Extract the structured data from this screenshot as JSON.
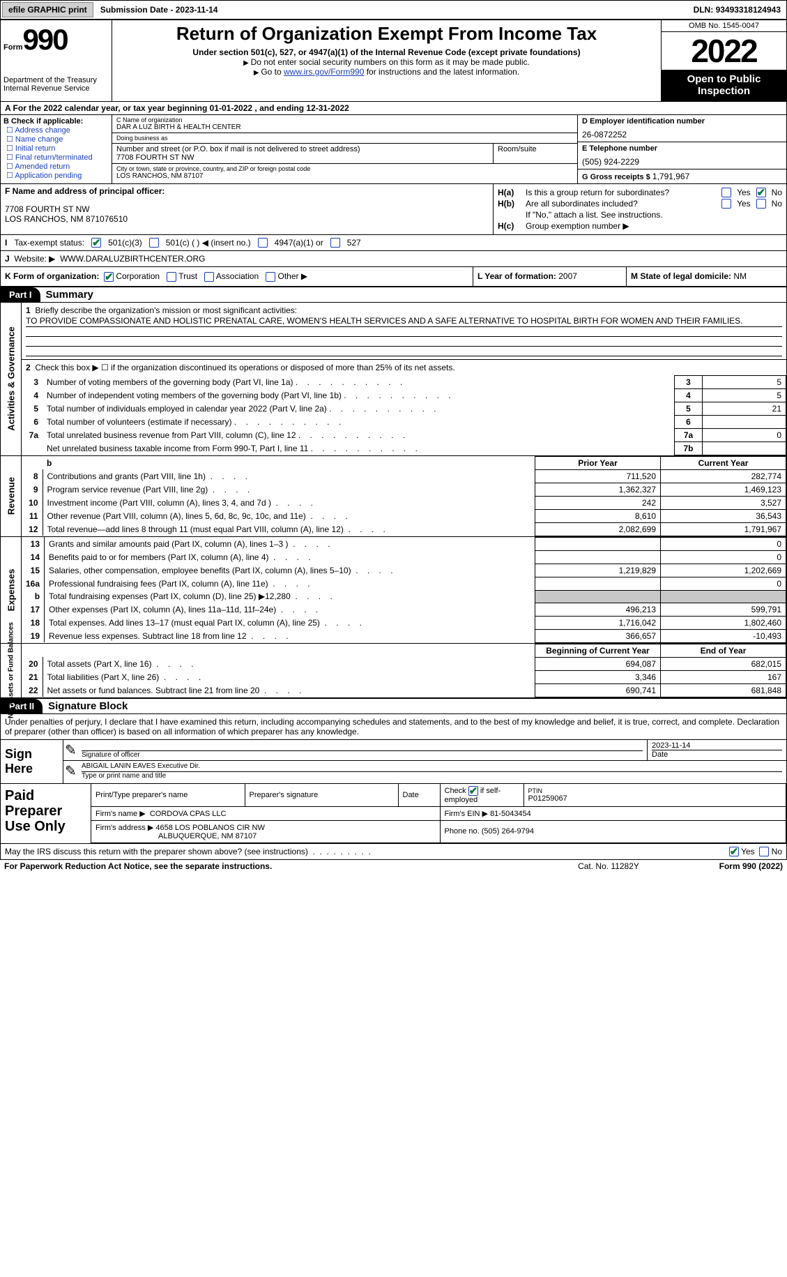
{
  "topbar": {
    "efile": "efile GRAPHIC print",
    "submission_label": "Submission Date - ",
    "submission_date": "2023-11-14",
    "dln_label": "DLN: ",
    "dln": "93493318124943"
  },
  "header": {
    "form_label": "Form",
    "form_num": "990",
    "dept": "Department of the Treasury\nInternal Revenue Service",
    "title": "Return of Organization Exempt From Income Tax",
    "sub1": "Under section 501(c), 527, or 4947(a)(1) of the Internal Revenue Code (except private foundations)",
    "sub2": "Do not enter social security numbers on this form as it may be made public.",
    "sub3_pre": "Go to ",
    "sub3_link": "www.irs.gov/Form990",
    "sub3_post": " for instructions and the latest information.",
    "omb": "OMB No. 1545-0047",
    "year": "2022",
    "open": "Open to Public Inspection"
  },
  "line_a": {
    "text_pre": "A For the 2022 calendar year, or tax year beginning ",
    "begin": "01-01-2022",
    "mid": "  , and ending ",
    "end": "12-31-2022"
  },
  "col_b": {
    "label": "B Check if applicable:",
    "opts": [
      "Address change",
      "Name change",
      "Initial return",
      "Final return/terminated",
      "Amended return",
      "Application pending"
    ]
  },
  "col_c": {
    "name_label": "C Name of organization",
    "name": "DAR A LUZ BIRTH & HEALTH CENTER",
    "dba_label": "Doing business as",
    "dba": "",
    "addr_label": "Number and street (or P.O. box if mail is not delivered to street address)",
    "room_label": "Room/suite",
    "addr": "7708 FOURTH ST NW",
    "city_label": "City or town, state or province, country, and ZIP or foreign postal code",
    "city": "LOS RANCHOS, NM  87107"
  },
  "col_d": {
    "ein_label": "D Employer identification number",
    "ein": "26-0872252",
    "tel_label": "E Telephone number",
    "tel": "(505) 924-2229",
    "gross_label": "G Gross receipts $ ",
    "gross": "1,791,967"
  },
  "col_f": {
    "label": "F Name and address of principal officer:",
    "addr1": "7708 FOURTH ST NW",
    "addr2": "LOS RANCHOS, NM  871076510"
  },
  "col_h": {
    "ha_label": "H(a)",
    "ha_text": "Is this a group return for subordinates?",
    "hb_label": "H(b)",
    "hb_text": "Are all subordinates included?",
    "h_note": "If \"No,\" attach a list. See instructions.",
    "hc_label": "H(c)",
    "hc_text": "Group exemption number ▶",
    "yes": "Yes",
    "no": "No"
  },
  "row_i": {
    "label": "I",
    "text": "Tax-exempt status:",
    "opt1": "501(c)(3)",
    "opt2": "501(c) (  ) ◀ (insert no.)",
    "opt3": "4947(a)(1) or",
    "opt4": "527"
  },
  "row_j": {
    "label": "J",
    "text": "Website: ▶",
    "val": "WWW.DARALUZBIRTHCENTER.ORG"
  },
  "row_k": {
    "label": "K Form of organization:",
    "opts": [
      "Corporation",
      "Trust",
      "Association",
      "Other ▶"
    ]
  },
  "row_l": {
    "label": "L Year of formation: ",
    "val": "2007"
  },
  "row_m": {
    "label": "M State of legal domicile: ",
    "val": "NM"
  },
  "parts": {
    "p1": "Part I",
    "p1_title": "Summary",
    "p2": "Part II",
    "p2_title": "Signature Block"
  },
  "mission": {
    "num": "1",
    "label": "Briefly describe the organization's mission or most significant activities:",
    "text": "TO PROVIDE COMPASSIONATE AND HOLISTIC PRENATAL CARE, WOMEN'S HEALTH SERVICES AND A SAFE ALTERNATIVE TO HOSPITAL BIRTH FOR WOMEN AND THEIR FAMILIES."
  },
  "line2": {
    "num": "2",
    "text": "Check this box ▶ ☐ if the organization discontinued its operations or disposed of more than 25% of its net assets."
  },
  "gov_rows": [
    {
      "n": "3",
      "d": "Number of voting members of the governing body (Part VI, line 1a)",
      "box": "3",
      "v": "5"
    },
    {
      "n": "4",
      "d": "Number of independent voting members of the governing body (Part VI, line 1b)",
      "box": "4",
      "v": "5"
    },
    {
      "n": "5",
      "d": "Total number of individuals employed in calendar year 2022 (Part V, line 2a)",
      "box": "5",
      "v": "21"
    },
    {
      "n": "6",
      "d": "Total number of volunteers (estimate if necessary)",
      "box": "6",
      "v": ""
    },
    {
      "n": "7a",
      "d": "Total unrelated business revenue from Part VIII, column (C), line 12",
      "box": "7a",
      "v": "0"
    },
    {
      "n": "",
      "d": "Net unrelated business taxable income from Form 990-T, Part I, line 11",
      "box": "7b",
      "v": ""
    }
  ],
  "vlabels": {
    "ag": "Activities & Governance",
    "rev": "Revenue",
    "exp": "Expenses",
    "na": "Net Assets or\nFund Balances"
  },
  "fin_hdr": {
    "b": "b",
    "py": "Prior Year",
    "cy": "Current Year"
  },
  "rev_rows": [
    {
      "n": "8",
      "d": "Contributions and grants (Part VIII, line 1h)",
      "py": "711,520",
      "cy": "282,774"
    },
    {
      "n": "9",
      "d": "Program service revenue (Part VIII, line 2g)",
      "py": "1,362,327",
      "cy": "1,469,123"
    },
    {
      "n": "10",
      "d": "Investment income (Part VIII, column (A), lines 3, 4, and 7d )",
      "py": "242",
      "cy": "3,527"
    },
    {
      "n": "11",
      "d": "Other revenue (Part VIII, column (A), lines 5, 6d, 8c, 9c, 10c, and 11e)",
      "py": "8,610",
      "cy": "36,543"
    },
    {
      "n": "12",
      "d": "Total revenue—add lines 8 through 11 (must equal Part VIII, column (A), line 12)",
      "py": "2,082,699",
      "cy": "1,791,967"
    }
  ],
  "exp_rows": [
    {
      "n": "13",
      "d": "Grants and similar amounts paid (Part IX, column (A), lines 1–3 )",
      "py": "",
      "cy": "0"
    },
    {
      "n": "14",
      "d": "Benefits paid to or for members (Part IX, column (A), line 4)",
      "py": "",
      "cy": "0"
    },
    {
      "n": "15",
      "d": "Salaries, other compensation, employee benefits (Part IX, column (A), lines 5–10)",
      "py": "1,219,829",
      "cy": "1,202,669"
    },
    {
      "n": "16a",
      "d": "Professional fundraising fees (Part IX, column (A), line 11e)",
      "py": "",
      "cy": "0"
    },
    {
      "n": "b",
      "d": "Total fundraising expenses (Part IX, column (D), line 25) ▶12,280",
      "py": "SHADE",
      "cy": "SHADE"
    },
    {
      "n": "17",
      "d": "Other expenses (Part IX, column (A), lines 11a–11d, 11f–24e)",
      "py": "496,213",
      "cy": "599,791"
    },
    {
      "n": "18",
      "d": "Total expenses. Add lines 13–17 (must equal Part IX, column (A), line 25)",
      "py": "1,716,042",
      "cy": "1,802,460"
    },
    {
      "n": "19",
      "d": "Revenue less expenses. Subtract line 18 from line 12",
      "py": "366,657",
      "cy": "-10,493"
    }
  ],
  "na_hdr": {
    "py": "Beginning of Current Year",
    "cy": "End of Year"
  },
  "na_rows": [
    {
      "n": "20",
      "d": "Total assets (Part X, line 16)",
      "py": "694,087",
      "cy": "682,015"
    },
    {
      "n": "21",
      "d": "Total liabilities (Part X, line 26)",
      "py": "3,346",
      "cy": "167"
    },
    {
      "n": "22",
      "d": "Net assets or fund balances. Subtract line 21 from line 20",
      "py": "690,741",
      "cy": "681,848"
    }
  ],
  "sig": {
    "text": "Under penalties of perjury, I declare that I have examined this return, including accompanying schedules and statements, and to the best of my knowledge and belief, it is true, correct, and complete. Declaration of preparer (other than officer) is based on all information of which preparer has any knowledge.",
    "sign_here": "Sign Here",
    "sig_label": "Signature of officer",
    "date_label": "Date",
    "date": "2023-11-14",
    "name": "ABIGAIL LANIN EAVES  Executive Dir.",
    "name_label": "Type or print name and title"
  },
  "prep": {
    "title": "Paid Preparer Use Only",
    "h1": "Print/Type preparer's name",
    "h2": "Preparer's signature",
    "h3": "Date",
    "h4_pre": "Check",
    "h4_post": "if self-employed",
    "h5_label": "PTIN",
    "h5": "P01259067",
    "firm_name_label": "Firm's name    ▶",
    "firm_name": "CORDOVA CPAS LLC",
    "firm_ein_label": "Firm's EIN ▶",
    "firm_ein": "81-5043454",
    "firm_addr_label": "Firm's address ▶",
    "firm_addr1": "4658 LOS POBLANOS CIR NW",
    "firm_addr2": "ALBUQUERQUE, NM  87107",
    "phone_label": "Phone no. ",
    "phone": "(505) 264-9794"
  },
  "discuss": {
    "text": "May the IRS discuss this return with the preparer shown above? (see instructions)",
    "yes": "Yes",
    "no": "No"
  },
  "footer": {
    "left": "For Paperwork Reduction Act Notice, see the separate instructions.",
    "mid": "Cat. No. 11282Y",
    "right": "Form 990 (2022)"
  }
}
